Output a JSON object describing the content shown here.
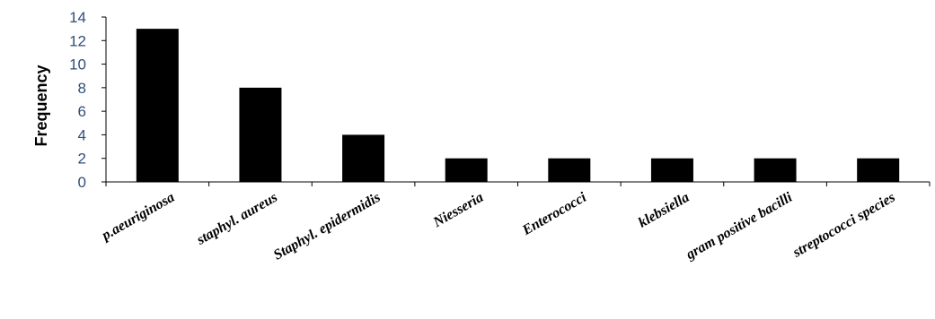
{
  "chart_data": {
    "type": "bar",
    "title": "",
    "xlabel": "",
    "ylabel": "Frequency",
    "ylim": [
      0,
      14
    ],
    "yticks": [
      "0",
      "2",
      "4",
      "6",
      "8",
      "10",
      "12",
      "14"
    ],
    "categories": [
      "p.aeuriginosa",
      "staphyl. aureus",
      "Staphyl.  epidermidis",
      "Niesseria",
      "Enterococci",
      "klebsiella",
      "gram positive bacilli",
      "streptococci species"
    ],
    "values": [
      13,
      8,
      4,
      2,
      2,
      2,
      2,
      2
    ],
    "bar_color": "#000000",
    "axis_color": "#000000",
    "tick_label_color": "#2f4f7a",
    "grid": false,
    "legend": "none"
  }
}
